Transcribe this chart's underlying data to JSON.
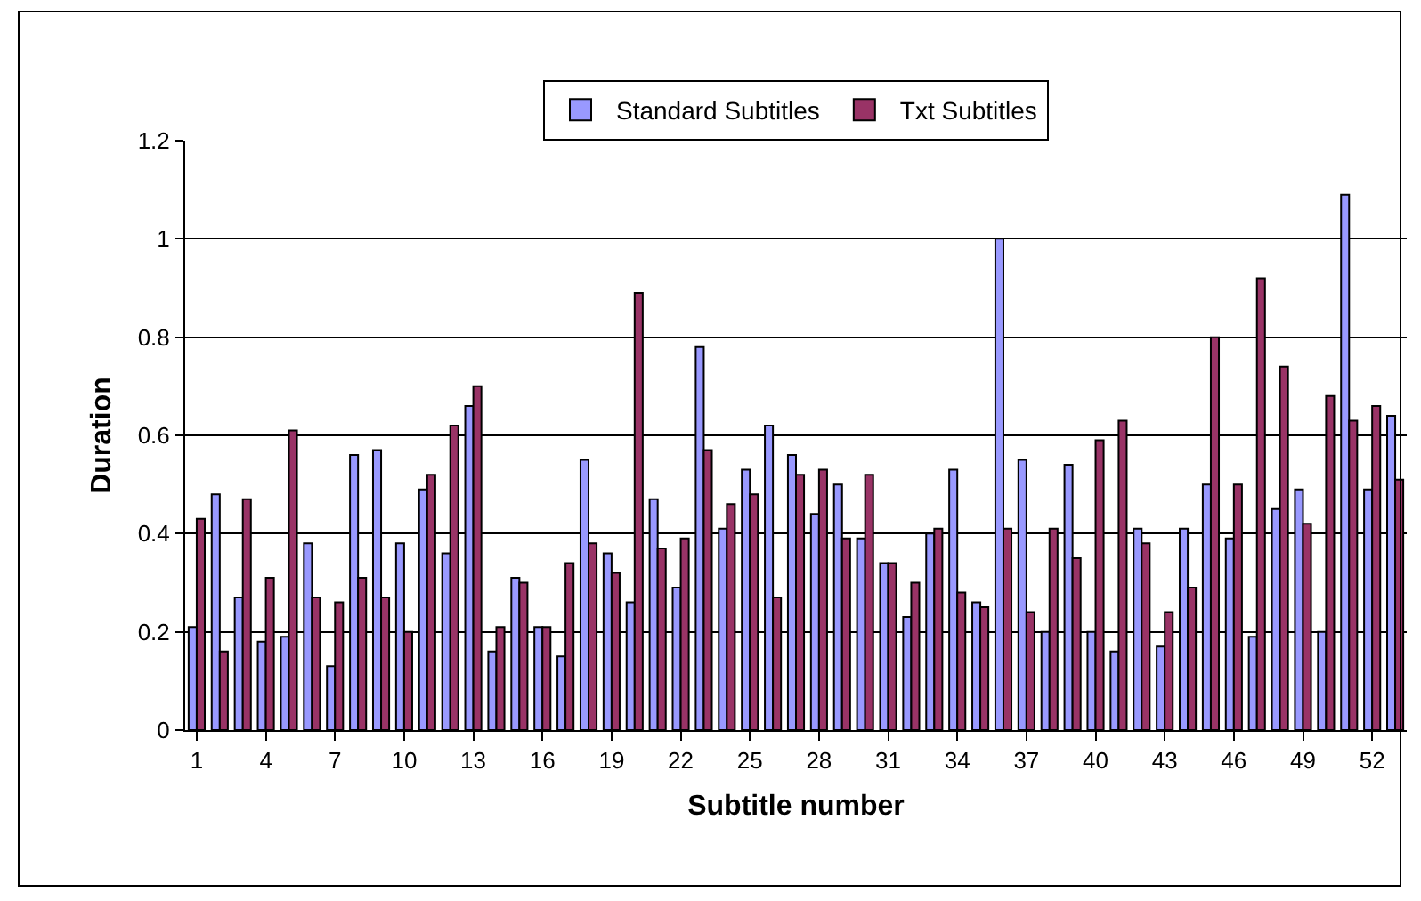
{
  "chart_data": {
    "type": "bar",
    "xlabel": "Subtitle number",
    "ylabel": "Duration",
    "categories": [
      "1",
      null,
      null,
      "4",
      null,
      null,
      "7",
      null,
      null,
      "10",
      null,
      null,
      "13",
      null,
      null,
      "16",
      null,
      null,
      "19",
      null,
      null,
      "22",
      null,
      null,
      "25",
      null,
      null,
      "28",
      null,
      null,
      "31",
      null,
      null,
      "34",
      null,
      null,
      "37",
      null,
      null,
      "40",
      null,
      null,
      "43",
      null,
      null,
      "46",
      null,
      null,
      "49",
      null,
      null,
      "52",
      null
    ],
    "series": [
      {
        "name": "Standard Subtitles",
        "color": "#9999ff",
        "values": [
          0.21,
          0.48,
          0.27,
          0.18,
          0.19,
          0.38,
          0.13,
          0.56,
          0.57,
          0.38,
          0.49,
          0.36,
          0.66,
          0.16,
          0.31,
          0.21,
          0.15,
          0.55,
          0.36,
          0.26,
          0.47,
          0.29,
          0.78,
          0.41,
          0.53,
          0.62,
          0.56,
          0.44,
          0.5,
          0.39,
          0.34,
          0.23,
          0.4,
          0.53,
          0.26,
          1.0,
          0.55,
          0.2,
          0.54,
          0.2,
          0.16,
          0.41,
          0.17,
          0.41,
          0.5,
          0.39,
          0.19,
          0.45,
          0.49,
          0.2,
          1.09,
          0.49,
          0.64
        ]
      },
      {
        "name": "Txt Subtitles",
        "color": "#993366",
        "values": [
          0.43,
          0.16,
          0.47,
          0.31,
          0.61,
          0.27,
          0.26,
          0.31,
          0.27,
          0.2,
          0.52,
          0.62,
          0.7,
          0.21,
          0.3,
          0.21,
          0.34,
          0.38,
          0.32,
          0.89,
          0.37,
          0.39,
          0.57,
          0.46,
          0.48,
          0.27,
          0.52,
          0.53,
          0.39,
          0.52,
          0.34,
          0.3,
          0.41,
          0.28,
          0.25,
          0.41,
          0.24,
          0.41,
          0.35,
          0.59,
          0.63,
          0.38,
          0.24,
          0.29,
          0.8,
          0.5,
          0.92,
          0.74,
          0.42,
          0.68,
          0.63,
          0.66,
          0.51
        ]
      }
    ],
    "ylim": [
      0,
      1.2
    ],
    "yticks": [
      0,
      0.2,
      0.4,
      0.6,
      0.8,
      1,
      1.2
    ],
    "grid": "y",
    "legend": "top"
  }
}
